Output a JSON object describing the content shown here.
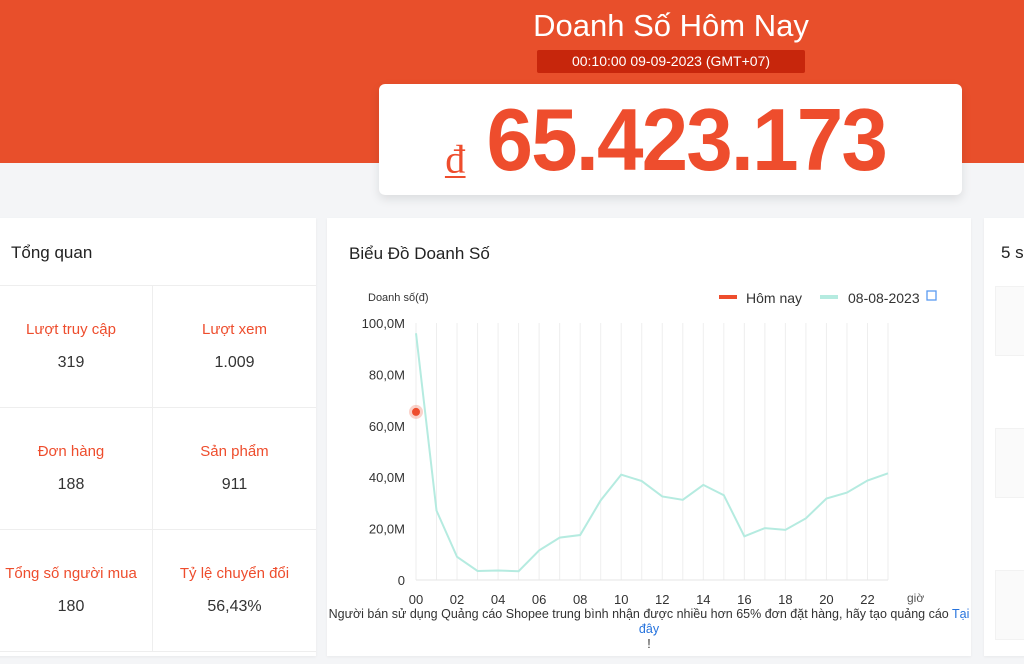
{
  "header": {
    "title": "Doanh Số Hôm Nay",
    "timestamp": "00:10:00 09-09-2023 (GMT+07)",
    "currency": "₫",
    "total": "65.423.173"
  },
  "overview": {
    "title": "Tổng quan",
    "metrics": [
      {
        "label": "Lượt truy cập",
        "value": "319"
      },
      {
        "label": "Lượt xem",
        "value": "1.009"
      },
      {
        "label": "Đơn hàng",
        "value": "188"
      },
      {
        "label": "Sản phẩm",
        "value": "911"
      },
      {
        "label": "Tổng số người mua",
        "value": "180"
      },
      {
        "label": "Tỷ lệ chuyển đổi",
        "value": "56,43%"
      }
    ]
  },
  "chart_section": {
    "title": "Biểu Đồ Doanh Số",
    "note": "Người bán sử dụng Quảng cáo Shopee trung bình nhận được nhiều hơn 65% đơn đặt hàng, hãy tạo quảng cáo",
    "note_link": "Tại đây",
    "note_end": "!"
  },
  "right_panel": {
    "title": "5 s"
  },
  "chart_data": {
    "type": "line",
    "ylabel": "Doanh số(đ)",
    "xlabel": "giờ",
    "ylim": [
      0,
      100
    ],
    "yticks": [
      0,
      20,
      40,
      60,
      80,
      100
    ],
    "ytick_labels": [
      "0",
      "20,0M",
      "40,0M",
      "60,0M",
      "80,0M",
      "100,0M"
    ],
    "x": [
      0,
      1,
      2,
      3,
      4,
      5,
      6,
      7,
      8,
      9,
      10,
      11,
      12,
      13,
      14,
      15,
      16,
      17,
      18,
      19,
      20,
      21,
      22,
      23
    ],
    "xtick_labels": [
      "00",
      "02",
      "04",
      "06",
      "08",
      "10",
      "12",
      "14",
      "16",
      "18",
      "20",
      "22"
    ],
    "series": [
      {
        "name": "Hôm nay",
        "color": "#ee4d2d",
        "x": [
          0
        ],
        "values": [
          65.4
        ]
      },
      {
        "name": "08-08-2023",
        "color": "#b5ebe0",
        "values": [
          96,
          27,
          9,
          3.5,
          3.7,
          3.4,
          11.5,
          16.5,
          17.5,
          31,
          41,
          38.5,
          32.5,
          31.2,
          37,
          33,
          17,
          20.2,
          19.5,
          24,
          31.7,
          34,
          38.7,
          41.5
        ]
      }
    ],
    "legend": "top-right",
    "grid": "vertical"
  }
}
